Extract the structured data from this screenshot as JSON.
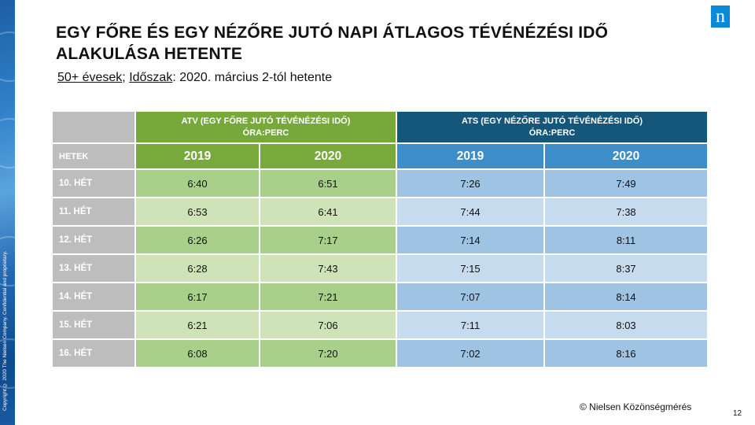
{
  "slide": {
    "title": "EGY FŐRE ÉS EGY NÉZŐRE JUTÓ NAPI ÁTLAGOS TÉVÉNÉZÉSI IDŐ ALAKULÁSA HETENTE",
    "subtitle": {
      "group_label": "50+ évesek",
      "sep1": ";",
      "period_label": "Időszak",
      "period_value": ": 2020. március 2-tól hetente"
    },
    "copyright_vertical": "Copyright © 2020 The Nielsen Company. Confidential and proprietary.",
    "source": "© Nielsen Közönségmérés",
    "page_number": "12",
    "logo_glyph": "n",
    "colors": {
      "atv_header": "#77a83a",
      "ats_header": "#15577a",
      "atv_year": "#78a93a",
      "ats_year": "#3d8ec8",
      "week_cell": "#bdbdbd"
    }
  },
  "table": {
    "group_headers": {
      "atv_line1": "ATV (EGY FŐRE JUTÓ TÉVÉNÉZÉSI IDŐ)",
      "atv_line2": "ÓRA:PERC",
      "ats_line1": "ATS (EGY NÉZŐRE JUTÓ TÉVÉNÉZÉSI IDŐ)",
      "ats_line2": "ÓRA:PERC"
    },
    "row_header_label": "HETEK",
    "years": [
      "2019",
      "2020",
      "2019",
      "2020"
    ],
    "rows": [
      {
        "week": "10. HÉT",
        "atv2019": "6:40",
        "atv2020": "6:51",
        "ats2019": "7:26",
        "ats2020": "7:49"
      },
      {
        "week": "11. HÉT",
        "atv2019": "6:53",
        "atv2020": "6:41",
        "ats2019": "7:44",
        "ats2020": "7:38"
      },
      {
        "week": "12. HÉT",
        "atv2019": "6:26",
        "atv2020": "7:17",
        "ats2019": "7:14",
        "ats2020": "8:11"
      },
      {
        "week": "13. HÉT",
        "atv2019": "6:28",
        "atv2020": "7:43",
        "ats2019": "7:15",
        "ats2020": "8:37"
      },
      {
        "week": "14. HÉT",
        "atv2019": "6:17",
        "atv2020": "7:21",
        "ats2019": "7:07",
        "ats2020": "8:14"
      },
      {
        "week": "15. HÉT",
        "atv2019": "6:21",
        "atv2020": "7:06",
        "ats2019": "7:11",
        "ats2020": "8:03"
      },
      {
        "week": "16. HÉT",
        "atv2019": "6:08",
        "atv2020": "7:20",
        "ats2019": "7:02",
        "ats2020": "8:16"
      }
    ]
  }
}
